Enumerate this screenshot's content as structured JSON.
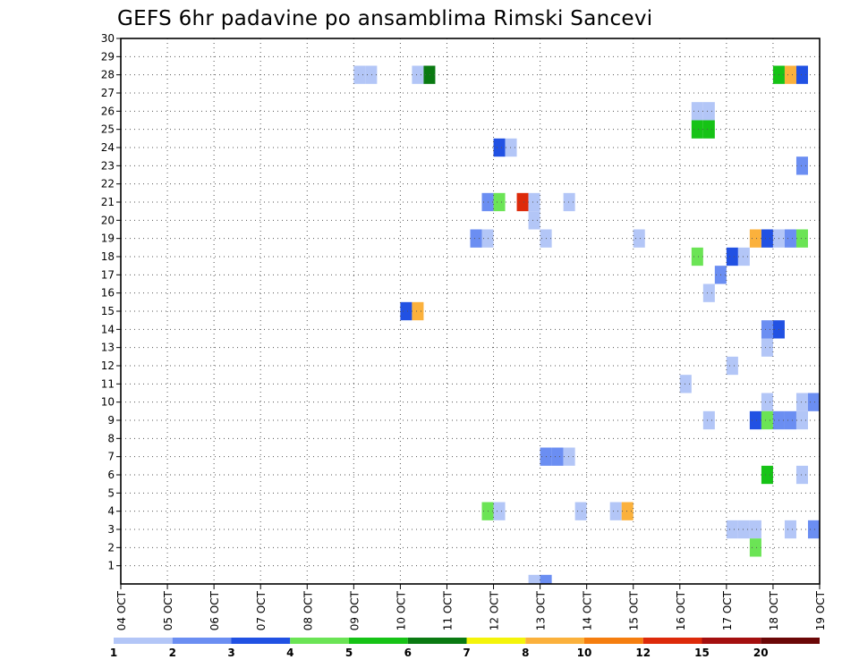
{
  "chart_data": {
    "type": "heatmap",
    "title": "GEFS 6hr padavine po ansamblima Rimski Sancevi",
    "xlabel": "",
    "ylabel": "",
    "grid": true,
    "x_range": [
      0,
      15
    ],
    "y_range": [
      0,
      30
    ],
    "x_tick_labels": [
      "04 OCT",
      "05 OCT",
      "06 OCT",
      "07 OCT",
      "08 OCT",
      "09 OCT",
      "10 OCT",
      "11 OCT",
      "12 OCT",
      "13 OCT",
      "14 OCT",
      "15 OCT",
      "16 OCT",
      "17 OCT",
      "18 OCT",
      "19 OCT"
    ],
    "y_tick_labels": [
      "1",
      "2",
      "3",
      "4",
      "5",
      "6",
      "7",
      "8",
      "9",
      "10",
      "11",
      "12",
      "13",
      "14",
      "15",
      "16",
      "17",
      "18",
      "19",
      "20",
      "21",
      "22",
      "23",
      "24",
      "25",
      "26",
      "27",
      "28",
      "29",
      "30"
    ],
    "colorbar": {
      "labels": [
        "1",
        "2",
        "3",
        "4",
        "5",
        "6",
        "7",
        "8",
        "10",
        "12",
        "15",
        "20"
      ],
      "colors": [
        "#b3c6f7",
        "#6b8ef2",
        "#2151e3",
        "#6be455",
        "#16c316",
        "#0a7a12",
        "#f4f40a",
        "#fbb13c",
        "#f57e0f",
        "#dd2a0a",
        "#a40f0f",
        "#6b0707"
      ]
    },
    "cells": [
      {
        "t": 5.0,
        "m": 28,
        "c": 0
      },
      {
        "t": 5.25,
        "m": 28,
        "c": 0
      },
      {
        "t": 6.25,
        "m": 28,
        "c": 0
      },
      {
        "t": 6.5,
        "m": 28,
        "c": 5
      },
      {
        "t": 14.0,
        "m": 28,
        "c": 4
      },
      {
        "t": 14.25,
        "m": 28,
        "c": 7
      },
      {
        "t": 14.5,
        "m": 28,
        "c": 2
      },
      {
        "t": 12.25,
        "m": 26,
        "c": 0
      },
      {
        "t": 12.5,
        "m": 26,
        "c": 0
      },
      {
        "t": 12.25,
        "m": 25,
        "c": 4
      },
      {
        "t": 12.5,
        "m": 25,
        "c": 4
      },
      {
        "t": 8.0,
        "m": 24,
        "c": 2
      },
      {
        "t": 8.25,
        "m": 24,
        "c": 0
      },
      {
        "t": 14.5,
        "m": 23,
        "c": 1
      },
      {
        "t": 7.75,
        "m": 21,
        "c": 1
      },
      {
        "t": 8.0,
        "m": 21,
        "c": 3
      },
      {
        "t": 8.5,
        "m": 21,
        "c": 9
      },
      {
        "t": 8.75,
        "m": 21,
        "c": 0
      },
      {
        "t": 9.5,
        "m": 21,
        "c": 0
      },
      {
        "t": 8.75,
        "m": 20,
        "c": 0
      },
      {
        "t": 7.5,
        "m": 19,
        "c": 1
      },
      {
        "t": 7.75,
        "m": 19,
        "c": 0
      },
      {
        "t": 9.0,
        "m": 19,
        "c": 0
      },
      {
        "t": 11.0,
        "m": 19,
        "c": 0
      },
      {
        "t": 13.5,
        "m": 19,
        "c": 7
      },
      {
        "t": 13.75,
        "m": 19,
        "c": 2
      },
      {
        "t": 14.0,
        "m": 19,
        "c": 0
      },
      {
        "t": 14.25,
        "m": 19,
        "c": 1
      },
      {
        "t": 14.5,
        "m": 19,
        "c": 3
      },
      {
        "t": 12.25,
        "m": 18,
        "c": 3
      },
      {
        "t": 13.0,
        "m": 18,
        "c": 2
      },
      {
        "t": 13.25,
        "m": 18,
        "c": 0
      },
      {
        "t": 12.75,
        "m": 17,
        "c": 1
      },
      {
        "t": 12.5,
        "m": 16,
        "c": 0
      },
      {
        "t": 6.0,
        "m": 15,
        "c": 2
      },
      {
        "t": 6.25,
        "m": 15,
        "c": 7
      },
      {
        "t": 13.75,
        "m": 14,
        "c": 1
      },
      {
        "t": 14.0,
        "m": 14,
        "c": 2
      },
      {
        "t": 13.75,
        "m": 13,
        "c": 0
      },
      {
        "t": 13.0,
        "m": 12,
        "c": 0
      },
      {
        "t": 12.0,
        "m": 11,
        "c": 0
      },
      {
        "t": 13.75,
        "m": 10,
        "c": 0
      },
      {
        "t": 14.5,
        "m": 10,
        "c": 0
      },
      {
        "t": 14.75,
        "m": 10,
        "c": 1
      },
      {
        "t": 12.5,
        "m": 9,
        "c": 0
      },
      {
        "t": 13.5,
        "m": 9,
        "c": 2
      },
      {
        "t": 13.75,
        "m": 9,
        "c": 3
      },
      {
        "t": 14.0,
        "m": 9,
        "c": 1
      },
      {
        "t": 14.25,
        "m": 9,
        "c": 1
      },
      {
        "t": 14.5,
        "m": 9,
        "c": 0
      },
      {
        "t": 9.0,
        "m": 7,
        "c": 1
      },
      {
        "t": 9.25,
        "m": 7,
        "c": 1
      },
      {
        "t": 9.5,
        "m": 7,
        "c": 0
      },
      {
        "t": 13.75,
        "m": 6,
        "c": 4
      },
      {
        "t": 14.5,
        "m": 6,
        "c": 0
      },
      {
        "t": 7.75,
        "m": 4,
        "c": 3
      },
      {
        "t": 8.0,
        "m": 4,
        "c": 0
      },
      {
        "t": 9.75,
        "m": 4,
        "c": 0
      },
      {
        "t": 10.5,
        "m": 4,
        "c": 0
      },
      {
        "t": 10.75,
        "m": 4,
        "c": 7
      },
      {
        "t": 13.0,
        "m": 3,
        "c": 0
      },
      {
        "t": 13.25,
        "m": 3,
        "c": 0
      },
      {
        "t": 13.5,
        "m": 3,
        "c": 0
      },
      {
        "t": 14.25,
        "m": 3,
        "c": 0
      },
      {
        "t": 14.75,
        "m": 3,
        "c": 1
      },
      {
        "t": 13.5,
        "m": 2,
        "c": 3
      },
      {
        "t": 8.75,
        "m": 0,
        "c": 0
      },
      {
        "t": 9.0,
        "m": 0,
        "c": 1
      }
    ]
  }
}
